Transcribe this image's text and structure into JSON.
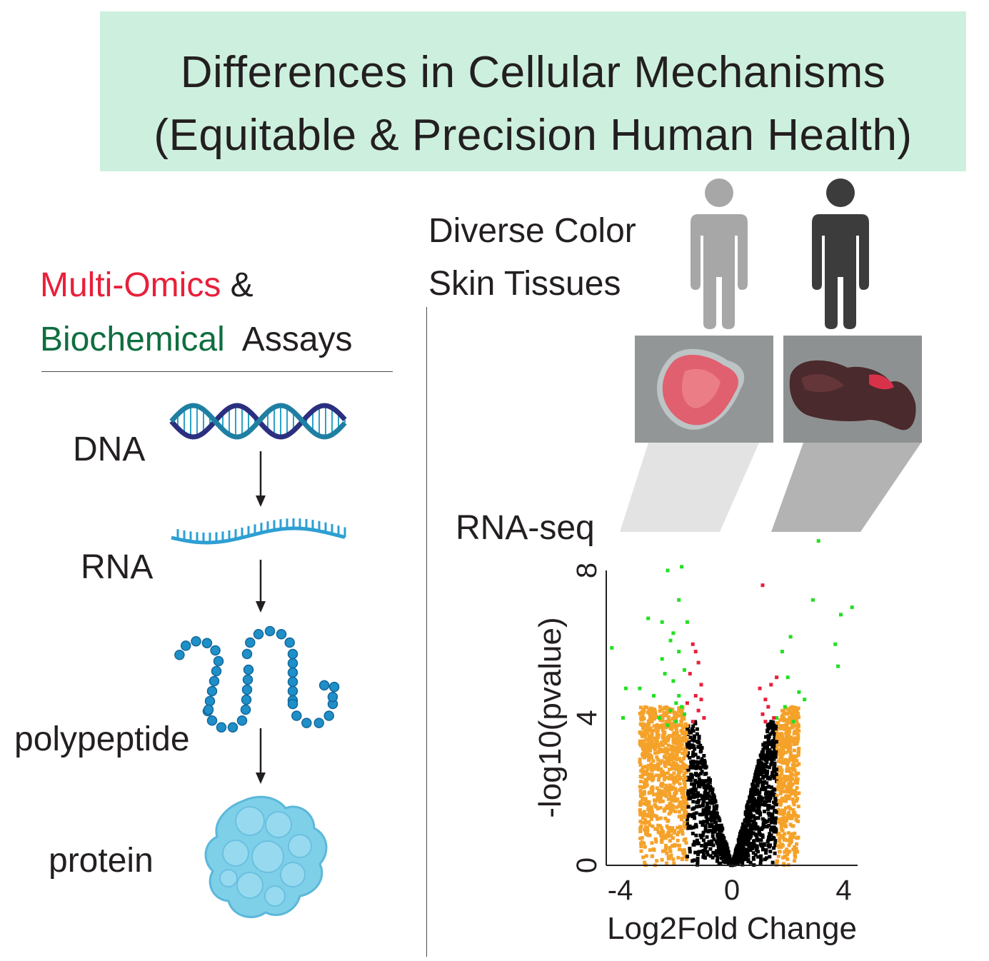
{
  "title": {
    "line1": "Differences in Cellular Mechanisms",
    "line2": "(Equitable & Precision Human Health)"
  },
  "left_heading": {
    "part1": "Multi-Omics",
    "part2": " &",
    "part3": "Biochemical",
    "part4": "  Assays"
  },
  "pathway": {
    "dna": "DNA",
    "rna": "RNA",
    "polypeptide": "polypeptide",
    "protein": "protein"
  },
  "right_heading": {
    "line1": "Diverse Color",
    "line2": "Skin Tissues"
  },
  "rnaseq_label": "RNA-seq",
  "colors": {
    "banner": "#cdf0de",
    "multi_omics": "#e8203a",
    "biochemical": "#0f6e3f",
    "light_person": "#a7a7a7",
    "dark_person": "#3c3c3c",
    "not_significant": "#000000",
    "fold_change_only": "#f5a22a",
    "pvalue_only": "#e8203a",
    "both_significant": "#22e022"
  },
  "icons": [
    "dna-helix-icon",
    "rna-strand-icon",
    "polypeptide-chain-icon",
    "protein-blob-icon",
    "person-light-icon",
    "person-dark-icon"
  ],
  "chart_data": {
    "type": "scatter",
    "title": "",
    "xlabel": "Log2Fold Change",
    "ylabel": "-log10(pvalue)",
    "xlim": [
      -4.5,
      4.5
    ],
    "ylim": [
      0,
      8
    ],
    "x_ticks": [
      "-4",
      "0",
      "4"
    ],
    "y_ticks": [
      "0",
      "4",
      "8"
    ],
    "series": [
      {
        "color": "#22e022",
        "points": [
          [
            -2.3,
            8.0
          ],
          [
            -1.8,
            8.1
          ],
          [
            -1.9,
            7.2
          ],
          [
            -3.0,
            6.7
          ],
          [
            -2.5,
            6.6
          ],
          [
            -1.6,
            6.6
          ],
          [
            -4.3,
            5.9
          ],
          [
            -2.2,
            6.1
          ],
          [
            -1.9,
            5.8
          ],
          [
            -2.4,
            5.2
          ],
          [
            -2.1,
            5.0
          ],
          [
            -3.8,
            4.8
          ],
          [
            -3.3,
            4.8
          ],
          [
            -2.8,
            4.6
          ],
          [
            -2.0,
            4.4
          ],
          [
            -2.2,
            4.2
          ],
          [
            -1.8,
            4.3
          ],
          [
            -3.9,
            4.0
          ],
          [
            -2.6,
            4.0
          ],
          [
            -2.0,
            3.9
          ],
          [
            -1.7,
            4.1
          ],
          [
            -1.9,
            4.6
          ],
          [
            -2.3,
            3.8
          ],
          [
            -2.5,
            5.6
          ],
          [
            -2.1,
            6.3
          ],
          [
            -1.7,
            5.3
          ],
          [
            2.1,
            6.2
          ],
          [
            1.8,
            5.8
          ],
          [
            2.9,
            7.2
          ],
          [
            3.9,
            6.8
          ],
          [
            3.7,
            6.0
          ],
          [
            4.3,
            7.0
          ],
          [
            3.8,
            5.4
          ],
          [
            2.4,
            4.7
          ],
          [
            1.9,
            4.3
          ],
          [
            1.6,
            4.0
          ],
          [
            2.2,
            3.9
          ],
          [
            2.6,
            4.5
          ],
          [
            2.0,
            5.1
          ],
          [
            3.1,
            8.8
          ]
        ]
      },
      {
        "color": "#e8203a",
        "points": [
          [
            -1.4,
            6.0
          ],
          [
            -1.2,
            5.5
          ],
          [
            -1.5,
            5.2
          ],
          [
            -1.1,
            4.9
          ],
          [
            -1.3,
            4.6
          ],
          [
            -1.6,
            4.4
          ],
          [
            -1.2,
            4.2
          ],
          [
            -1.0,
            4.0
          ],
          [
            -1.4,
            3.9
          ],
          [
            -1.3,
            5.8
          ],
          [
            -1.1,
            4.5
          ],
          [
            1.1,
            7.6
          ],
          [
            1.0,
            4.8
          ],
          [
            1.2,
            4.5
          ],
          [
            1.3,
            4.3
          ],
          [
            1.4,
            4.9
          ],
          [
            1.1,
            4.1
          ],
          [
            1.5,
            4.0
          ],
          [
            1.2,
            3.9
          ],
          [
            1.6,
            5.1
          ]
        ]
      }
    ]
  }
}
